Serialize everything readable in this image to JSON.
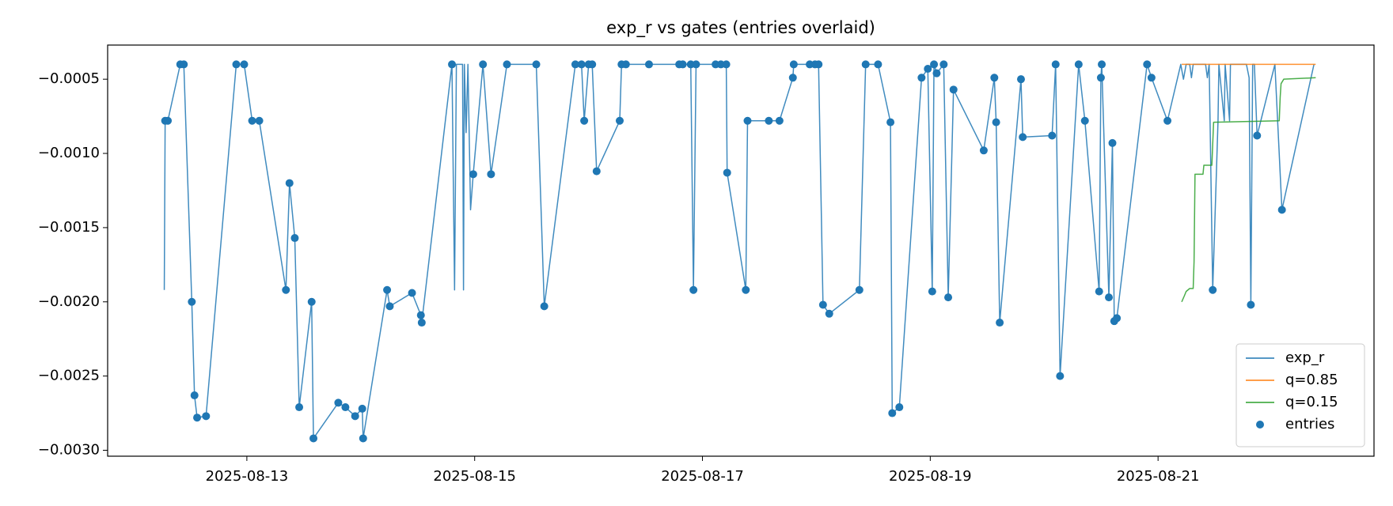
{
  "chart_data": {
    "type": "line",
    "title": "exp_r vs gates (entries overlaid)",
    "xlim": [
      "2025-08-11 18:40",
      "2025-08-22 21:30"
    ],
    "xticks": [
      "2025-08-13",
      "2025-08-15",
      "2025-08-17",
      "2025-08-19",
      "2025-08-21"
    ],
    "ylim": [
      -0.00304,
      -0.00027
    ],
    "yticks": [
      {
        "value": -0.003,
        "label": "−0.0030"
      },
      {
        "value": -0.0025,
        "label": "−0.0025"
      },
      {
        "value": -0.002,
        "label": "−0.0020"
      },
      {
        "value": -0.0015,
        "label": "−0.0015"
      },
      {
        "value": -0.001,
        "label": "−0.0010"
      },
      {
        "value": -0.0005,
        "label": "−0.0005"
      }
    ],
    "grid": false,
    "legend": "lower right",
    "series": [
      {
        "name": "exp_r",
        "type": "line",
        "color": "#1f77b4",
        "x": [
          "2025-08-12 06:36",
          "2025-08-12 06:47",
          "2025-08-12 07:21",
          "2025-08-12 09:58",
          "2025-08-12 10:43",
          "2025-08-12 12:24",
          "2025-08-12 12:58",
          "2025-08-12 13:31",
          "2025-08-12 15:24",
          "2025-08-12 21:46",
          "2025-08-12 23:26",
          "2025-08-13 01:07",
          "2025-08-13 02:37",
          "2025-08-13 08:14",
          "2025-08-13 08:59",
          "2025-08-13 10:06",
          "2025-08-13 11:02",
          "2025-08-13 13:39",
          "2025-08-13 14:02",
          "2025-08-13 19:16",
          "2025-08-13 20:46",
          "2025-08-13 22:49",
          "2025-08-14 00:19",
          "2025-08-14 00:30",
          "2025-08-14 05:33",
          "2025-08-14 06:07",
          "2025-08-14 10:48",
          "2025-08-14 12:40",
          "2025-08-14 12:51",
          "2025-08-14 19:13",
          "2025-08-14 19:46",
          "2025-08-14 20:09",
          "2025-08-14 21:27",
          "2025-08-14 21:39",
          "2025-08-14 21:50",
          "2025-08-14 22:12",
          "2025-08-14 22:35",
          "2025-08-14 23:08",
          "2025-08-14 23:42",
          "2025-08-15 01:45",
          "2025-08-15 03:27",
          "2025-08-15 06:48",
          "2025-08-15 12:59",
          "2025-08-15 14:40",
          "2025-08-15 21:13",
          "2025-08-15 22:31",
          "2025-08-15 23:05",
          "2025-08-16 00:01",
          "2025-08-16 00:46",
          "2025-08-16 01:42",
          "2025-08-16 06:34",
          "2025-08-16 06:57",
          "2025-08-16 07:52",
          "2025-08-16 12:44",
          "2025-08-16 19:06",
          "2025-08-16 19:51",
          "2025-08-16 21:32",
          "2025-08-16 22:06",
          "2025-08-16 22:39",
          "2025-08-17 02:46",
          "2025-08-17 03:53",
          "2025-08-17 05:01",
          "2025-08-17 05:12",
          "2025-08-17 09:08",
          "2025-08-17 09:30",
          "2025-08-17 13:59",
          "2025-08-17 16:14",
          "2025-08-17 19:03",
          "2025-08-17 19:14",
          "2025-08-17 22:36",
          "2025-08-17 23:43",
          "2025-08-18 00:28",
          "2025-08-18 01:24",
          "2025-08-18 02:43",
          "2025-08-18 09:04",
          "2025-08-18 10:23",
          "2025-08-18 13:00",
          "2025-08-18 15:37",
          "2025-08-18 15:59",
          "2025-08-18 17:29",
          "2025-08-18 22:10",
          "2025-08-18 23:29",
          "2025-08-19 00:25",
          "2025-08-19 00:47",
          "2025-08-19 01:21",
          "2025-08-19 02:50",
          "2025-08-19 03:47",
          "2025-08-19 04:54",
          "2025-08-19 11:16",
          "2025-08-19 13:30",
          "2025-08-19 13:53",
          "2025-08-19 14:38",
          "2025-08-19 19:07",
          "2025-08-19 19:29",
          "2025-08-20 01:40",
          "2025-08-20 02:25",
          "2025-08-20 03:21",
          "2025-08-20 07:16",
          "2025-08-20 08:35",
          "2025-08-20 11:35",
          "2025-08-20 11:57",
          "2025-08-20 12:08",
          "2025-08-20 13:38",
          "2025-08-20 14:23",
          "2025-08-20 14:46",
          "2025-08-20 15:19",
          "2025-08-20 21:41",
          "2025-08-20 22:37",
          "2025-08-21 01:59",
          "2025-08-21 04:47",
          "2025-08-21 05:21",
          "2025-08-21 05:55",
          "2025-08-21 06:40",
          "2025-08-21 07:02",
          "2025-08-21 07:24",
          "2025-08-21 10:01",
          "2025-08-21 10:23",
          "2025-08-21 10:46",
          "2025-08-21 11:31",
          "2025-08-21 12:38",
          "2025-08-21 12:49",
          "2025-08-21 13:57",
          "2025-08-21 14:08",
          "2025-08-21 15:04",
          "2025-08-21 15:15",
          "2025-08-21 18:37",
          "2025-08-21 19:11",
          "2025-08-21 19:33",
          "2025-08-21 19:56",
          "2025-08-21 20:18",
          "2025-08-21 20:52",
          "2025-08-22 00:37",
          "2025-08-22 02:06",
          "2025-08-22 08:51"
        ],
        "values": [
          -0.00192,
          -0.00078,
          -0.00078,
          -0.0004,
          -0.0004,
          -0.002,
          -0.00263,
          -0.00278,
          -0.00277,
          -0.0004,
          -0.0004,
          -0.00078,
          -0.00078,
          -0.00192,
          -0.0012,
          -0.00157,
          -0.00271,
          -0.002,
          -0.00292,
          -0.00268,
          -0.00271,
          -0.00277,
          -0.00272,
          -0.00292,
          -0.00192,
          -0.00203,
          -0.00194,
          -0.00209,
          -0.00214,
          -0.0004,
          -0.00192,
          -0.0004,
          -0.0004,
          -0.00192,
          -0.0004,
          -0.00086,
          -0.0004,
          -0.00138,
          -0.00114,
          -0.0004,
          -0.00114,
          -0.0004,
          -0.0004,
          -0.00203,
          -0.0004,
          -0.0004,
          -0.00078,
          -0.0004,
          -0.0004,
          -0.00112,
          -0.00078,
          -0.0004,
          -0.0004,
          -0.0004,
          -0.0004,
          -0.0004,
          -0.0004,
          -0.00192,
          -0.0004,
          -0.0004,
          -0.0004,
          -0.0004,
          -0.00113,
          -0.00192,
          -0.00078,
          -0.00078,
          -0.00078,
          -0.00049,
          -0.0004,
          -0.0004,
          -0.0004,
          -0.0004,
          -0.00202,
          -0.00208,
          -0.00192,
          -0.0004,
          -0.0004,
          -0.00079,
          -0.00275,
          -0.00271,
          -0.00049,
          -0.00043,
          -0.00193,
          -0.0004,
          -0.00046,
          -0.0004,
          -0.00197,
          -0.00057,
          -0.00098,
          -0.00049,
          -0.00079,
          -0.00214,
          -0.0005,
          -0.00089,
          -0.00088,
          -0.0004,
          -0.0025,
          -0.0004,
          -0.00078,
          -0.00193,
          -0.00049,
          -0.0004,
          -0.00197,
          -0.00093,
          -0.00213,
          -0.00211,
          -0.0004,
          -0.00049,
          -0.00078,
          -0.0004,
          -0.0005,
          -0.0004,
          -0.0004,
          -0.00049,
          -0.0004,
          -0.0004,
          -0.00049,
          -0.0004,
          -0.00192,
          -0.00078,
          -0.0004,
          -0.00078,
          -0.0004,
          -0.00078,
          -0.0004,
          -0.0004,
          -0.00049,
          -0.00202,
          -0.0004,
          -0.0004,
          -0.00088,
          -0.0004,
          -0.00138,
          -0.0004
        ]
      },
      {
        "name": "q=0.85",
        "type": "line",
        "color": "#ff7f0e",
        "x": [
          "2025-08-21 04:59",
          "2025-08-22 09:13"
        ],
        "values": [
          -0.0004,
          -0.0004
        ]
      },
      {
        "name": "q=0.15",
        "type": "line",
        "color": "#2ca02c",
        "x": [
          "2025-08-21 04:59",
          "2025-08-21 05:32",
          "2025-08-21 05:55",
          "2025-08-21 06:40",
          "2025-08-21 07:24",
          "2025-08-21 07:35",
          "2025-08-21 07:47",
          "2025-08-21 09:28",
          "2025-08-21 09:39",
          "2025-08-21 11:20",
          "2025-08-21 11:42",
          "2025-08-22 01:32",
          "2025-08-22 01:44",
          "2025-08-22 01:55",
          "2025-08-22 02:29",
          "2025-08-22 09:13"
        ],
        "values": [
          -0.002,
          -0.00196,
          -0.00193,
          -0.00191,
          -0.00191,
          -0.00173,
          -0.00114,
          -0.00114,
          -0.00108,
          -0.00108,
          -0.00079,
          -0.00078,
          -0.00062,
          -0.00053,
          -0.0005,
          -0.00049
        ]
      },
      {
        "name": "entries",
        "type": "scatter",
        "color": "#1f77b4",
        "x": [
          "2025-08-12 06:47",
          "2025-08-12 07:21",
          "2025-08-12 09:58",
          "2025-08-12 10:43",
          "2025-08-12 12:24",
          "2025-08-12 12:58",
          "2025-08-12 13:31",
          "2025-08-12 15:24",
          "2025-08-12 21:46",
          "2025-08-12 23:26",
          "2025-08-13 01:07",
          "2025-08-13 02:37",
          "2025-08-13 08:14",
          "2025-08-13 08:59",
          "2025-08-13 10:06",
          "2025-08-13 11:02",
          "2025-08-13 13:39",
          "2025-08-13 14:02",
          "2025-08-13 19:16",
          "2025-08-13 20:46",
          "2025-08-13 22:49",
          "2025-08-14 00:19",
          "2025-08-14 00:30",
          "2025-08-14 05:33",
          "2025-08-14 06:07",
          "2025-08-14 10:48",
          "2025-08-14 12:40",
          "2025-08-14 12:51",
          "2025-08-14 19:13",
          "2025-08-14 23:42",
          "2025-08-15 01:45",
          "2025-08-15 03:27",
          "2025-08-15 06:48",
          "2025-08-15 12:59",
          "2025-08-15 14:40",
          "2025-08-15 21:13",
          "2025-08-15 22:31",
          "2025-08-15 23:05",
          "2025-08-16 00:01",
          "2025-08-16 00:46",
          "2025-08-16 01:42",
          "2025-08-16 06:34",
          "2025-08-16 06:57",
          "2025-08-16 07:52",
          "2025-08-16 12:44",
          "2025-08-16 19:06",
          "2025-08-16 19:51",
          "2025-08-16 21:32",
          "2025-08-16 22:06",
          "2025-08-16 22:39",
          "2025-08-17 02:46",
          "2025-08-17 03:53",
          "2025-08-17 05:01",
          "2025-08-17 05:12",
          "2025-08-17 09:08",
          "2025-08-17 09:30",
          "2025-08-17 13:59",
          "2025-08-17 16:14",
          "2025-08-17 19:03",
          "2025-08-17 19:14",
          "2025-08-17 22:36",
          "2025-08-17 23:43",
          "2025-08-18 00:28",
          "2025-08-18 01:24",
          "2025-08-18 02:43",
          "2025-08-18 09:04",
          "2025-08-18 10:23",
          "2025-08-18 13:00",
          "2025-08-18 15:37",
          "2025-08-18 15:59",
          "2025-08-18 17:29",
          "2025-08-18 22:10",
          "2025-08-18 23:29",
          "2025-08-19 00:25",
          "2025-08-19 00:47",
          "2025-08-19 01:21",
          "2025-08-19 02:50",
          "2025-08-19 03:47",
          "2025-08-19 04:54",
          "2025-08-19 11:16",
          "2025-08-19 13:30",
          "2025-08-19 13:53",
          "2025-08-19 14:38",
          "2025-08-19 19:07",
          "2025-08-19 19:29",
          "2025-08-20 01:40",
          "2025-08-20 02:25",
          "2025-08-20 03:21",
          "2025-08-20 07:16",
          "2025-08-20 08:35",
          "2025-08-20 11:35",
          "2025-08-20 11:57",
          "2025-08-20 12:08",
          "2025-08-20 13:38",
          "2025-08-20 14:23",
          "2025-08-20 14:46",
          "2025-08-20 15:19",
          "2025-08-20 21:41",
          "2025-08-20 22:37",
          "2025-08-21 01:59",
          "2025-08-21 11:31",
          "2025-08-21 19:33",
          "2025-08-21 20:52",
          "2025-08-22 02:06"
        ],
        "values": [
          -0.00078,
          -0.00078,
          -0.0004,
          -0.0004,
          -0.002,
          -0.00263,
          -0.00278,
          -0.00277,
          -0.0004,
          -0.0004,
          -0.00078,
          -0.00078,
          -0.00192,
          -0.0012,
          -0.00157,
          -0.00271,
          -0.002,
          -0.00292,
          -0.00268,
          -0.00271,
          -0.00277,
          -0.00272,
          -0.00292,
          -0.00192,
          -0.00203,
          -0.00194,
          -0.00209,
          -0.00214,
          -0.0004,
          -0.00114,
          -0.0004,
          -0.00114,
          -0.0004,
          -0.0004,
          -0.00203,
          -0.0004,
          -0.0004,
          -0.00078,
          -0.0004,
          -0.0004,
          -0.00112,
          -0.00078,
          -0.0004,
          -0.0004,
          -0.0004,
          -0.0004,
          -0.0004,
          -0.0004,
          -0.00192,
          -0.0004,
          -0.0004,
          -0.0004,
          -0.0004,
          -0.00113,
          -0.00192,
          -0.00078,
          -0.00078,
          -0.00078,
          -0.00049,
          -0.0004,
          -0.0004,
          -0.0004,
          -0.0004,
          -0.00202,
          -0.00208,
          -0.00192,
          -0.0004,
          -0.0004,
          -0.00079,
          -0.00275,
          -0.00271,
          -0.00049,
          -0.00043,
          -0.00193,
          -0.0004,
          -0.00046,
          -0.0004,
          -0.00197,
          -0.00057,
          -0.00098,
          -0.00049,
          -0.00079,
          -0.00214,
          -0.0005,
          -0.00089,
          -0.00088,
          -0.0004,
          -0.0025,
          -0.0004,
          -0.00078,
          -0.00193,
          -0.00049,
          -0.0004,
          -0.00197,
          -0.00093,
          -0.00213,
          -0.00211,
          -0.0004,
          -0.00049,
          -0.00078,
          -0.00192,
          -0.00202,
          -0.00088,
          -0.00138
        ]
      }
    ]
  }
}
